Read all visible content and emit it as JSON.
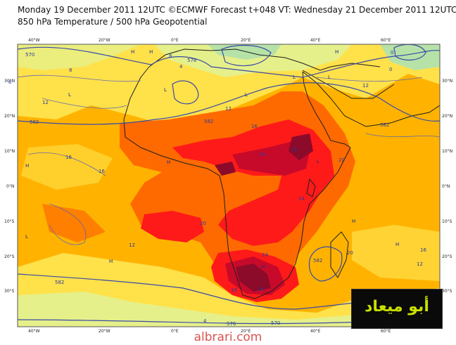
{
  "header": {
    "line1": "Monday 19 December 2011 12UTC ©ECMWF Forecast t+048 VT: Wednesday 21 December 2011 12UTC",
    "line2": "850 hPa Temperature / 500 hPa Geopotential"
  },
  "axes": {
    "lon_labels": [
      "40°W",
      "20°W",
      "0°E",
      "20°E",
      "40°E",
      "60°E"
    ],
    "lat_labels": [
      "30°N",
      "20°N",
      "10°N",
      "0°N",
      "10°S",
      "20°S",
      "30°S"
    ]
  },
  "colors": {
    "ocean_cool": "#ffe14a",
    "warm": "#ffb300",
    "hot": "#ff6a00",
    "very_hot": "#ff1a1a",
    "extreme": "#c80a2a",
    "peak": "#8c0a2a",
    "cold": "#e6f08a",
    "coldest": "#b6e2a8",
    "coast": "#1e1e1e",
    "contour": "#3a4aa8"
  },
  "contour_labels": {
    "geopotential": [
      "570",
      "576",
      "582",
      "582",
      "582",
      "582",
      "576",
      "570",
      "582"
    ],
    "temperature": [
      "8",
      "12",
      "12",
      "12",
      "16",
      "16",
      "16",
      "16",
      "20",
      "20",
      "20",
      "20",
      "24",
      "24",
      "24",
      "24",
      "12",
      "8",
      "4",
      "0",
      "16",
      "12",
      "4",
      "0",
      "8"
    ]
  },
  "pressure_centers": [
    "H",
    "H",
    "H",
    "H",
    "H",
    "H",
    "H",
    "H",
    "H",
    "L",
    "L",
    "L",
    "L",
    "L",
    "L",
    "L"
  ],
  "watermark": "albrari.com",
  "logo_text": "أبو ميعاد"
}
